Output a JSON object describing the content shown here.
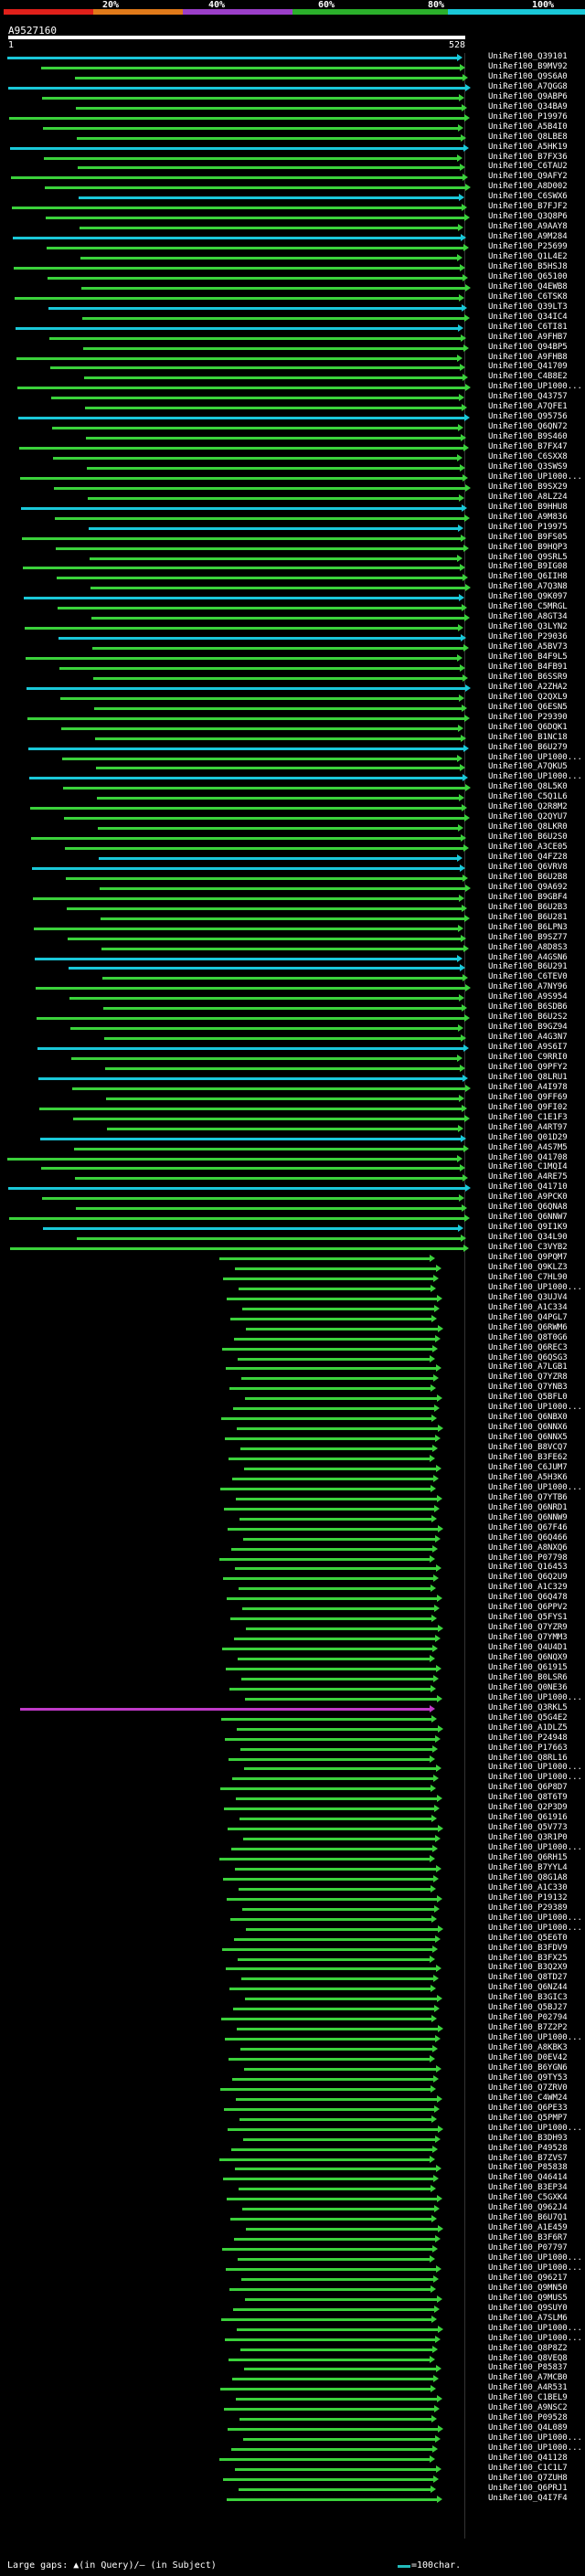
{
  "scale": {
    "labels": [
      "20%",
      "40%",
      "60%",
      "80%",
      "100%"
    ],
    "colors": [
      "#e0201a",
      "#e07a1a",
      "#9b3ec8",
      "#2bb02b",
      "#1ac8d8"
    ]
  },
  "query": {
    "id": "A9527160",
    "start": "1",
    "end": "528"
  },
  "hits": [
    "UniRef100_Q39101",
    "UniRef100_B9MV92",
    "UniRef100_Q9S6A0",
    "UniRef100_A7QGG8",
    "UniRef100_Q9ABP6",
    "UniRef100_Q34BA9",
    "UniRef100_P19976",
    "UniRef100_A5B4I0",
    "UniRef100_Q8LBE8",
    "UniRef100_A5HK19",
    "UniRef100_B7FX36",
    "UniRef100_C6TAU2",
    "UniRef100_Q9AFY2",
    "UniRef100_A8D002",
    "UniRef100_C6SWX6",
    "UniRef100_B7FJF2",
    "UniRef100_Q3Q8P6",
    "UniRef100_A9AAY8",
    "UniRef100_A9M284",
    "UniRef100_P25699",
    "UniRef100_Q1L4E2",
    "UniRef100_B5HSJ8",
    "UniRef100_Q65100",
    "UniRef100_Q4EWB8",
    "UniRef100_C6TSK8",
    "UniRef100_Q39LT3",
    "UniRef100_Q34IC4",
    "UniRef100_C6TI81",
    "UniRef100_A9FHB7",
    "UniRef100_Q94BP5",
    "UniRef100_A9FHB8",
    "UniRef100_Q41709",
    "UniRef100_C4B8E2",
    "UniRef100_UP1000...",
    "UniRef100_Q43757",
    "UniRef100_A7QFE1",
    "UniRef100_Q95756",
    "UniRef100_Q6QN72",
    "UniRef100_B9S460",
    "UniRef100_B7FX47",
    "UniRef100_C6SXX8",
    "UniRef100_Q3SWS9",
    "UniRef100_UP1000...",
    "UniRef100_B9SX29",
    "UniRef100_A8LZ24",
    "UniRef100_B9HHU8",
    "UniRef100_A9M836",
    "UniRef100_P19975",
    "UniRef100_B9FS05",
    "UniRef100_B9HQP3",
    "UniRef100_Q9SRL5",
    "UniRef100_B9IG08",
    "UniRef100_Q6IIH8",
    "UniRef100_A7Q3N8",
    "UniRef100_Q9K097",
    "UniRef100_C5MRGL",
    "UniRef100_A8GT34",
    "UniRef100_Q3LYN2",
    "UniRef100_P29036",
    "UniRef100_A5BV73",
    "UniRef100_B4F9L5",
    "UniRef100_B4FB91",
    "UniRef100_B6SSR9",
    "UniRef100_A2ZHA2",
    "UniRef100_Q2QXL9",
    "UniRef100_Q6ESN5",
    "UniRef100_P29390",
    "UniRef100_Q6DQK1",
    "UniRef100_B1NC18",
    "UniRef100_B6U279",
    "UniRef100_UP1000...",
    "UniRef100_A7QKU5",
    "UniRef100_UP1000...",
    "UniRef100_Q8L5K0",
    "UniRef100_C5Q1L6",
    "UniRef100_Q2R8M2",
    "UniRef100_Q2QYU7",
    "UniRef100_Q8LKR0",
    "UniRef100_B6U2S0",
    "UniRef100_A3CE05",
    "UniRef100_Q4FZ28",
    "UniRef100_Q6VRV8",
    "UniRef100_B6U2B8",
    "UniRef100_Q9A692",
    "UniRef100_B9GBF4",
    "UniRef100_B6U2B3",
    "UniRef100_B6U281",
    "UniRef100_B6LPN3",
    "UniRef100_B9SZ77",
    "UniRef100_A8D8S3",
    "UniRef100_A4GSN6",
    "UniRef100_B6U291",
    "UniRef100_C6TEV0",
    "UniRef100_A7NY96",
    "UniRef100_A9S954",
    "UniRef100_B6SDB6",
    "UniRef100_B6U2S2",
    "UniRef100_B9GZ94",
    "UniRef100_A4G3N7",
    "UniRef100_A9S6I7",
    "UniRef100_C9RRI0",
    "UniRef100_Q9PFY2",
    "UniRef100_Q8LRU1",
    "UniRef100_A4I978",
    "UniRef100_Q9FF69",
    "UniRef100_Q9FI02",
    "UniRef100_C1E1F3",
    "UniRef100_A4RT97",
    "UniRef100_Q01D29",
    "UniRef100_A4S7M5",
    "UniRef100_Q41708",
    "UniRef100_C1MQI4",
    "UniRef100_A4RE75",
    "UniRef100_Q41710",
    "UniRef100_A9PCK0",
    "UniRef100_Q6QNA8",
    "UniRef100_Q6NNW7",
    "UniRef100_Q9I1K9",
    "UniRef100_Q34L90",
    "UniRef100_C3VYB2",
    "UniRef100_Q9PQM7",
    "UniRef100_Q9KLZ3",
    "UniRef100_C7HL90",
    "UniRef100_UP1000...",
    "UniRef100_Q3UJV4",
    "UniRef100_A1C334",
    "UniRef100_Q4PGL7",
    "UniRef100_Q6RWM6",
    "UniRef100_Q8T0G6",
    "UniRef100_Q6REC3",
    "UniRef100_Q6QSG3",
    "UniRef100_A7LGB1",
    "UniRef100_Q7YZR8",
    "UniRef100_Q7YNB3",
    "UniRef100_Q5BFL0",
    "UniRef100_UP1000...",
    "UniRef100_Q6NBX0",
    "UniRef100_Q6NNX6",
    "UniRef100_Q6NNX5",
    "UniRef100_B8VCQ7",
    "UniRef100_B3FE62",
    "UniRef100_C6JUM7",
    "UniRef100_A5H3K6",
    "UniRef100_UP1000...",
    "UniRef100_Q7YTB6",
    "UniRef100_Q6NRD1",
    "UniRef100_Q6NNW9",
    "UniRef100_Q67F46",
    "UniRef100_Q6Q466",
    "UniRef100_A8NXQ6",
    "UniRef100_P07798",
    "UniRef100_Q16453",
    "UniRef100_Q6Q2U9",
    "UniRef100_A1C329",
    "UniRef100_Q6Q478",
    "UniRef100_Q6PPV2",
    "UniRef100_Q5FYS1",
    "UniRef100_Q7YZR9",
    "UniRef100_Q7YMM3",
    "UniRef100_Q4U4D1",
    "UniRef100_Q6NQX9",
    "UniRef100_Q61915",
    "UniRef100_B0LSR6",
    "UniRef100_Q0NE36",
    "UniRef100_UP1000...",
    "UniRef100_Q3RKL5",
    "UniRef100_Q5G4E2",
    "UniRef100_A1DLZ5",
    "UniRef100_P24948",
    "UniRef100_P17663",
    "UniRef100_Q8RL16",
    "UniRef100_UP1000...",
    "UniRef100_UP1000...",
    "UniRef100_Q6P8D7",
    "UniRef100_Q8T6T9",
    "UniRef100_Q2P3D9",
    "UniRef100_Q61916",
    "UniRef100_Q5V773",
    "UniRef100_Q3R1P0",
    "UniRef100_UP1000...",
    "UniRef100_Q6RH15",
    "UniRef100_B7YYL4",
    "UniRef100_Q8G1A8",
    "UniRef100_A1C330",
    "UniRef100_P19132",
    "UniRef100_P29389",
    "UniRef100_UP1000...",
    "UniRef100_UP1000...",
    "UniRef100_Q5E6T0",
    "UniRef100_B3FDV9",
    "UniRef100_B3FX25",
    "UniRef100_B3Q2X9",
    "UniRef100_Q8TD27",
    "UniRef100_Q6NZ44",
    "UniRef100_B3GIC3",
    "UniRef100_Q5BJ27",
    "UniRef100_P02794",
    "UniRef100_B7Z2P2",
    "UniRef100_UP1000...",
    "UniRef100_A8KBK3",
    "UniRef100_D0EV42",
    "UniRef100_B6YGN6",
    "UniRef100_Q9TY53",
    "UniRef100_Q7ZRV0",
    "UniRef100_C4WM24",
    "UniRef100_Q6PE33",
    "UniRef100_Q5PMP7",
    "UniRef100_UP1000...",
    "UniRef100_B3DH93",
    "UniRef100_P49528",
    "UniRef100_B7ZVS7",
    "UniRef100_P85838",
    "UniRef100_Q46414",
    "UniRef100_B3EP34",
    "UniRef100_C5GXK4",
    "UniRef100_Q962J4",
    "UniRef100_B6U7Q1",
    "UniRef100_A1E459",
    "UniRef100_B3F6R7",
    "UniRef100_P07797",
    "UniRef100_UP1000...",
    "UniRef100_UP1000...",
    "UniRef100_Q96217",
    "UniRef100_Q9MN50",
    "UniRef100_Q9MUS5",
    "UniRef100_Q9SUY0",
    "UniRef100_A7SLM6",
    "UniRef100_UP1000...",
    "UniRef100_UP1000...",
    "UniRef100_Q8P8Z2",
    "UniRef100_Q8VEQ8",
    "UniRef100_P85837",
    "UniRef100_A7MCB0",
    "UniRef100_A4R531",
    "UniRef100_C1BEL9",
    "UniRef100_A9NSC2",
    "UniRef100_P09528",
    "UniRef100_Q4L089",
    "UniRef100_UP1000...",
    "UniRef100_UP1000...",
    "UniRef100_Q41128",
    "UniRef100_C1C1L7",
    "UniRef100_Q7ZUH8",
    "UniRef100_Q6PRJ1",
    "UniRef100_Q4I7F4"
  ],
  "legend": {
    "gaps": "Large gaps: ▲(in Query)/— (in Subject)",
    "scale": "=100char."
  }
}
